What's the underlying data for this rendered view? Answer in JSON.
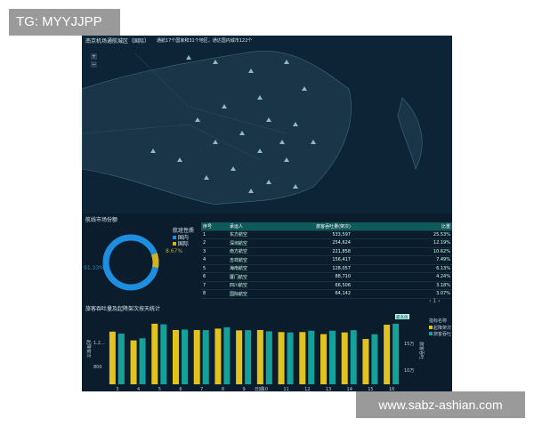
{
  "watermarks": {
    "top_left": "TG: MYYJJPP",
    "bottom_right": "www.sabz-ashian.com"
  },
  "map": {
    "title": "南京机场通航城区（国际）",
    "subtitle": "通航17个国家和31个地区，通达国内城市122个",
    "zoom_in": "+",
    "zoom_out": "−",
    "marker_color": "#8fb8c8"
  },
  "pie": {
    "title": "航线市场份额",
    "legend_title": "航班性质",
    "legend": [
      {
        "label": "国内",
        "color": "#1e8fe0"
      },
      {
        "label": "国际",
        "color": "#d4b21a"
      }
    ],
    "labels": {
      "domestic": "91.33%",
      "international": "8.67%"
    }
  },
  "table": {
    "headers": [
      "序号",
      "承运人",
      "旅客吞吐量(架次)",
      "比重"
    ],
    "rows": [
      [
        "1",
        "东方航空",
        "533,597",
        "25.53%"
      ],
      [
        "2",
        "深圳航空",
        "254,624",
        "12.19%"
      ],
      [
        "3",
        "南方航空",
        "221,858",
        "10.62%"
      ],
      [
        "4",
        "吉祥航空",
        "156,417",
        "7.49%"
      ],
      [
        "5",
        "海南航空",
        "128,057",
        "6.13%"
      ],
      [
        "6",
        "厦门航空",
        "88,710",
        "4.24%"
      ],
      [
        "7",
        "四川航空",
        "66,506",
        "3.18%"
      ],
      [
        "8",
        "国际航空",
        "64,142",
        "3.07%"
      ]
    ],
    "pagination": {
      "prev": "‹",
      "page": "1",
      "next": "›"
    }
  },
  "chart_data": {
    "type": "bar",
    "title": "旅客吞吐量及起降架次按天统计",
    "xlabel": "日期",
    "ylabel": "起降架次",
    "y2label": "旅客吞吐",
    "categories": [
      "3",
      "4",
      "5",
      "6",
      "7",
      "8",
      "9",
      "10",
      "11",
      "12",
      "13",
      "14",
      "15",
      "16"
    ],
    "legend_title": "指标名称",
    "legend_placement": "right",
    "y_ticks": [
      "1.2...",
      "800"
    ],
    "y2_ticks": [
      "15万",
      "10万"
    ],
    "highlight_label": "最高值",
    "series": [
      {
        "name": "起降架次",
        "axis": "left",
        "color": "#e2c21e",
        "values": [
          1240,
          1117,
          1351,
          1263,
          1263,
          1283,
          1258,
          1263,
          1234,
          1234,
          1205,
          1229,
          1137,
          1337
        ]
      },
      {
        "name": "旅客吞吐",
        "axis": "right",
        "color": "#16a09a",
        "values": [
          147000,
          139000,
          163000,
          154000,
          153000,
          158000,
          153000,
          151000,
          149000,
          152000,
          152000,
          153000,
          146000,
          164000
        ]
      }
    ]
  }
}
